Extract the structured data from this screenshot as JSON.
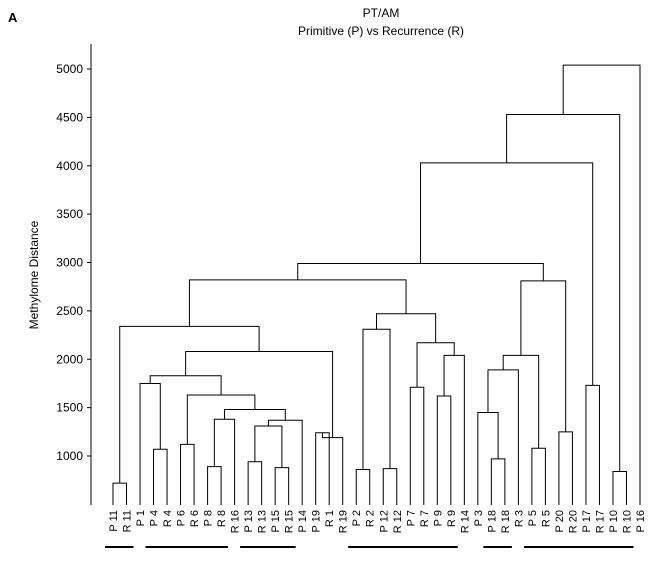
{
  "panel_label": "A",
  "chart_data": {
    "type": "dendrogram",
    "title": "PT/AM",
    "subtitle": "Primitive (P) vs Recurrence (R)",
    "ylabel": "Methylome Distance",
    "xlabel": "",
    "ylim": [
      400,
      5250
    ],
    "yticks": [
      1000,
      1500,
      2000,
      2500,
      3000,
      3500,
      4000,
      4500,
      5000
    ],
    "grid": false,
    "leaves": [
      "P 11",
      "R 11",
      "P 1",
      "P 4",
      "R 4",
      "P 6",
      "R 6",
      "P 8",
      "R 8",
      "R 16",
      "P 13",
      "R 13",
      "P 15",
      "R 15",
      "P 14",
      "P 19",
      "R 1",
      "R 19",
      "P 2",
      "R 2",
      "P 12",
      "R 12",
      "P 7",
      "R 7",
      "P 9",
      "R 9",
      "R 14",
      "P 3",
      "P 18",
      "R 18",
      "R 3",
      "P 5",
      "R 5",
      "P 20",
      "R 20",
      "P 17",
      "R 17",
      "P 10",
      "R 10",
      "P 16"
    ],
    "pairs": [
      [
        0,
        1
      ],
      [
        3,
        4
      ],
      [
        5,
        6
      ],
      [
        7,
        8
      ],
      [
        10,
        11
      ],
      [
        12,
        13
      ],
      [
        18,
        19
      ],
      [
        20,
        21
      ],
      [
        22,
        23
      ],
      [
        24,
        25
      ],
      [
        28,
        29
      ],
      [
        31,
        32
      ],
      [
        33,
        34
      ],
      [
        35,
        36
      ],
      [
        37,
        38
      ]
    ],
    "merges": [
      {
        "left": [
          "leaf",
          0
        ],
        "right": [
          "leaf",
          1
        ],
        "height": 720
      },
      {
        "left": [
          "leaf",
          3
        ],
        "right": [
          "leaf",
          4
        ],
        "height": 1070
      },
      {
        "left": [
          "leaf",
          2
        ],
        "right": [
          "node",
          1
        ],
        "height": 1750
      },
      {
        "left": [
          "leaf",
          5
        ],
        "right": [
          "leaf",
          6
        ],
        "height": 1120
      },
      {
        "left": [
          "leaf",
          7
        ],
        "right": [
          "leaf",
          8
        ],
        "height": 890
      },
      {
        "left": [
          "node",
          4
        ],
        "right": [
          "leaf",
          9
        ],
        "height": 1380
      },
      {
        "left": [
          "leaf",
          10
        ],
        "right": [
          "leaf",
          11
        ],
        "height": 940
      },
      {
        "left": [
          "leaf",
          12
        ],
        "right": [
          "leaf",
          13
        ],
        "height": 880
      },
      {
        "left": [
          "node",
          6
        ],
        "right": [
          "node",
          7
        ],
        "height": 1310
      },
      {
        "left": [
          "node",
          8
        ],
        "right": [
          "leaf",
          14
        ],
        "height": 1370
      },
      {
        "left": [
          "node",
          5
        ],
        "right": [
          "node",
          9
        ],
        "height": 1480
      },
      {
        "left": [
          "node",
          3
        ],
        "right": [
          "node",
          10
        ],
        "height": 1630
      },
      {
        "left": [
          "node",
          2
        ],
        "right": [
          "node",
          11
        ],
        "height": 1830
      },
      {
        "left": [
          "leaf",
          15
        ],
        "right": [
          "leaf",
          16
        ],
        "height": 1240
      },
      {
        "left": [
          "node",
          13
        ],
        "right": [
          "leaf",
          17
        ],
        "height": 1190
      },
      {
        "left": [
          "node",
          12
        ],
        "right": [
          "node",
          14
        ],
        "height": 2080
      },
      {
        "left": [
          "node",
          0
        ],
        "right": [
          "node",
          15
        ],
        "height": 2340
      },
      {
        "left": [
          "leaf",
          18
        ],
        "right": [
          "leaf",
          19
        ],
        "height": 860
      },
      {
        "left": [
          "leaf",
          20
        ],
        "right": [
          "leaf",
          21
        ],
        "height": 870
      },
      {
        "left": [
          "node",
          17
        ],
        "right": [
          "node",
          18
        ],
        "height": 2310
      },
      {
        "left": [
          "leaf",
          22
        ],
        "right": [
          "leaf",
          23
        ],
        "height": 1710
      },
      {
        "left": [
          "leaf",
          24
        ],
        "right": [
          "leaf",
          25
        ],
        "height": 1620
      },
      {
        "left": [
          "node",
          21
        ],
        "right": [
          "leaf",
          26
        ],
        "height": 2040
      },
      {
        "left": [
          "node",
          20
        ],
        "right": [
          "node",
          22
        ],
        "height": 2170
      },
      {
        "left": [
          "node",
          19
        ],
        "right": [
          "node",
          23
        ],
        "height": 2470
      },
      {
        "left": [
          "node",
          16
        ],
        "right": [
          "node",
          24
        ],
        "height": 2820
      },
      {
        "left": [
          "leaf",
          28
        ],
        "right": [
          "leaf",
          29
        ],
        "height": 970
      },
      {
        "left": [
          "leaf",
          27
        ],
        "right": [
          "node",
          26
        ],
        "height": 1450
      },
      {
        "left": [
          "node",
          27
        ],
        "right": [
          "leaf",
          30
        ],
        "height": 1890
      },
      {
        "left": [
          "leaf",
          31
        ],
        "right": [
          "leaf",
          32
        ],
        "height": 1080
      },
      {
        "left": [
          "node",
          28
        ],
        "right": [
          "node",
          29
        ],
        "height": 2040
      },
      {
        "left": [
          "leaf",
          33
        ],
        "right": [
          "leaf",
          34
        ],
        "height": 1250
      },
      {
        "left": [
          "node",
          30
        ],
        "right": [
          "node",
          31
        ],
        "height": 2810
      },
      {
        "left": [
          "node",
          25
        ],
        "right": [
          "node",
          32
        ],
        "height": 2990
      },
      {
        "left": [
          "leaf",
          35
        ],
        "right": [
          "leaf",
          36
        ],
        "height": 1730
      },
      {
        "left": [
          "node",
          33
        ],
        "right": [
          "node",
          34
        ],
        "height": 4030
      },
      {
        "left": [
          "leaf",
          37
        ],
        "right": [
          "leaf",
          38
        ],
        "height": 840
      },
      {
        "left": [
          "node",
          35
        ],
        "right": [
          "node",
          36
        ],
        "height": 4530
      },
      {
        "left": [
          "node",
          37
        ],
        "right": [
          "leaf",
          39
        ],
        "height": 5040
      }
    ]
  }
}
